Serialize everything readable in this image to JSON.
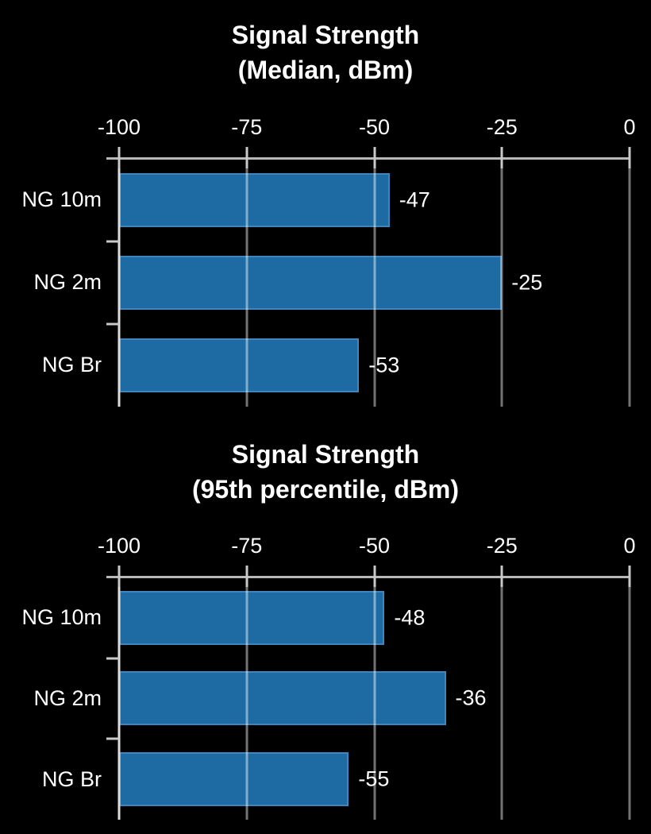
{
  "page": {
    "background": "#000000"
  },
  "colors": {
    "bg": "#000000",
    "text": "#ffffff",
    "bar": "#1e6aa3",
    "bar_edge": "#3f86be",
    "grid": "rgba(255,255,255,0.45)",
    "axis": "#b8b8b8",
    "tick": "#c9c9c9",
    "left_axis": "#dcdcdc"
  },
  "chart_data": [
    {
      "type": "bar",
      "orientation": "horizontal",
      "title": "Signal Strength",
      "subtitle": "(Median, dBm)",
      "categories": [
        "NG 10m",
        "NG 2m",
        "NG Br"
      ],
      "values": [
        -47,
        -25,
        -53
      ],
      "value_labels": [
        "-47",
        "-25",
        "-53"
      ],
      "x_ticks": [
        "-100",
        "-75",
        "-50",
        "-25",
        "0"
      ],
      "xlim": [
        -100,
        0
      ],
      "grid": true,
      "legend": false,
      "value_label_position": "outside-end"
    },
    {
      "type": "bar",
      "orientation": "horizontal",
      "title": "Signal Strength",
      "subtitle": "(95th percentile, dBm)",
      "categories": [
        "NG 10m",
        "NG 2m",
        "NG Br"
      ],
      "values": [
        -48,
        -36,
        -55
      ],
      "value_labels": [
        "-48",
        "-36",
        "-55"
      ],
      "x_ticks": [
        "-100",
        "-75",
        "-50",
        "-25",
        "0"
      ],
      "xlim": [
        -100,
        0
      ],
      "grid": true,
      "legend": false,
      "value_label_position": "outside-end"
    }
  ]
}
